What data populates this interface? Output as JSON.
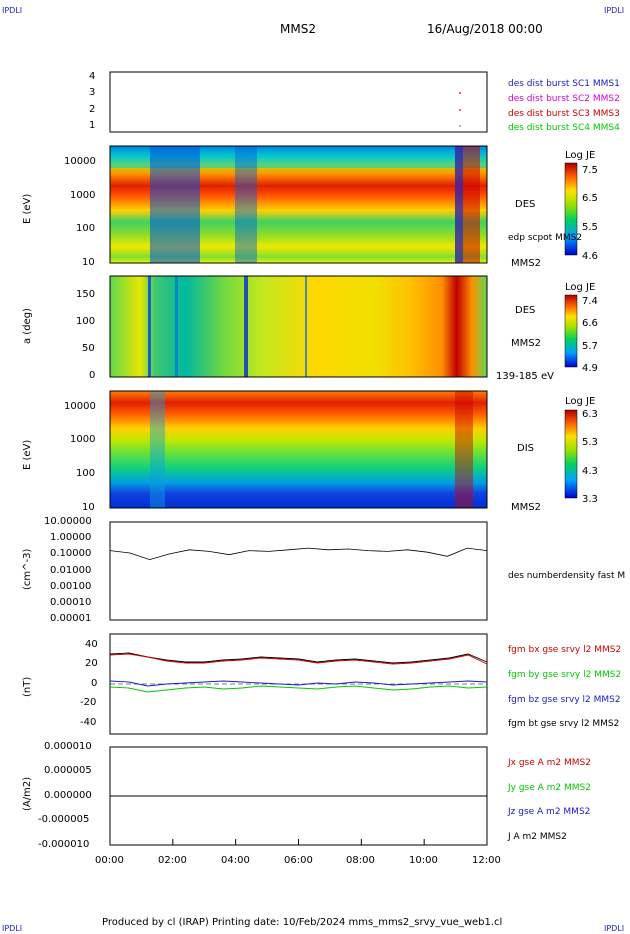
{
  "corners": {
    "tl": "IPDLI",
    "tr": "IPDLI",
    "bl": "IPDLI",
    "br": "IPDLI"
  },
  "header": {
    "spacecraft": "MMS2",
    "datetime": "16/Aug/2018 00:00"
  },
  "footer": "Produced by cl (IRAP)   Printing date: 10/Feb/2024   mms_mms2_srvy_vue_web1.cl",
  "colors": {
    "blue": "#1a1acc",
    "magenta": "#d400d4",
    "red": "#cc0000",
    "green": "#00c800",
    "black": "#000000"
  },
  "chart_data": [
    {
      "type": "scatter",
      "y_ticks": [
        "4",
        "3",
        "2",
        "1"
      ],
      "ylim": [
        0.5,
        4.5
      ],
      "legend": [
        {
          "name": "des dist burst SC1 MMS1",
          "color": "#1a1acc"
        },
        {
          "name": "des dist burst SC2 MMS2",
          "color": "#d400d4"
        },
        {
          "name": "des dist burst SC3 MMS3",
          "color": "#cc0000"
        },
        {
          "name": "des dist burst SC4 MMS4",
          "color": "#00c800"
        }
      ],
      "points": [
        {
          "x": 11.55,
          "y": 3
        },
        {
          "x": 11.55,
          "y": 2
        }
      ]
    },
    {
      "type": "heatmap",
      "ylabel": "E (eV)",
      "y_ticks": [
        "10000",
        "1000",
        "100",
        "10"
      ],
      "side_labels": [
        "DES",
        "edp scpot MMS2",
        "MMS2"
      ],
      "colorbar": {
        "title": "Log JE",
        "ticks": [
          "7.5",
          "6.5",
          "5.5",
          "4.6"
        ]
      }
    },
    {
      "type": "heatmap",
      "ylabel": "a (deg)",
      "y_ticks": [
        "150",
        "100",
        "50",
        "0"
      ],
      "side_labels": [
        "DES",
        "MMS2",
        "139-185 eV"
      ],
      "colorbar": {
        "title": "Log JE",
        "ticks": [
          "7.4",
          "6.6",
          "5.7",
          "4.9"
        ]
      }
    },
    {
      "type": "heatmap",
      "ylabel": "E (eV)",
      "y_ticks": [
        "10000",
        "1000",
        "100",
        "10"
      ],
      "side_labels": [
        "DIS",
        "MMS2"
      ],
      "colorbar": {
        "title": "Log JE",
        "ticks": [
          "6.3",
          "5.3",
          "4.3",
          "3.3"
        ]
      }
    },
    {
      "type": "line",
      "ylabel": "(cm^-3)",
      "y_ticks": [
        "10.00000",
        "1.00000",
        "0.10000",
        "0.01000",
        "0.00100",
        "0.00010",
        "0.00001"
      ],
      "legend": [
        {
          "name": "des numberdensity fast M",
          "color": "#000000"
        }
      ],
      "series": [
        {
          "values_log10": [
            -0.75,
            -0.9,
            -1.3,
            -0.95,
            -0.7,
            -0.8,
            -1.0,
            -0.75,
            -0.8,
            -0.7,
            -0.6,
            -0.7,
            -0.65,
            -0.75,
            -0.8,
            -0.7,
            -0.85,
            -1.1,
            -0.6,
            -0.75
          ]
        }
      ]
    },
    {
      "type": "line",
      "ylabel": "(nT)",
      "ylim": [
        -50,
        50
      ],
      "y_ticks": [
        "40",
        "20",
        "0",
        "-20",
        "-40"
      ],
      "legend": [
        {
          "name": "fgm bx gse srvy l2 MMS2",
          "color": "#cc0000"
        },
        {
          "name": "fgm by gse srvy l2 MMS2",
          "color": "#00c800"
        },
        {
          "name": "fgm bz gse srvy l2 MMS2",
          "color": "#1a1acc"
        },
        {
          "name": "fgm bt gse srvy l2 MMS2",
          "color": "#000000"
        }
      ],
      "series": [
        {
          "name": "fgm bt gse srvy l2 MMS2",
          "values": [
            30,
            31,
            27,
            24,
            22,
            22,
            24,
            25,
            27,
            26,
            25,
            22,
            24,
            25,
            23,
            21,
            22,
            24,
            26,
            30,
            22
          ]
        },
        {
          "name": "fgm bx gse srvy l2 MMS2",
          "values": [
            29,
            30,
            27,
            23,
            21,
            21,
            23,
            24,
            26,
            25,
            24,
            21,
            23,
            24,
            22,
            20,
            21,
            23,
            25,
            29,
            20
          ]
        },
        {
          "name": "fgm by gse srvy l2 MMS2",
          "values": [
            -3,
            -4,
            -8,
            -6,
            -4,
            -3,
            -5,
            -4,
            -2,
            -3,
            -4,
            -5,
            -3,
            -2,
            -4,
            -6,
            -5,
            -3,
            -2,
            -4,
            -3
          ]
        },
        {
          "name": "fgm bz gse srvy l2 MMS2",
          "values": [
            3,
            2,
            -2,
            0,
            1,
            2,
            3,
            2,
            1,
            0,
            -1,
            1,
            0,
            2,
            1,
            -1,
            0,
            1,
            2,
            3,
            2
          ]
        }
      ]
    },
    {
      "type": "line",
      "ylabel": "(A/m2)",
      "ylim": [
        -1e-05,
        1e-05
      ],
      "y_ticks": [
        "0.000010",
        "0.000005",
        "0.000000",
        "-0.000005",
        "-0.000010"
      ],
      "legend": [
        {
          "name": "Jx gse A m2 MMS2",
          "color": "#cc0000"
        },
        {
          "name": "Jy gse A m2 MMS2",
          "color": "#00c800"
        },
        {
          "name": "Jz gse A m2 MMS2",
          "color": "#1a1acc"
        },
        {
          "name": "J A m2 MMS2",
          "color": "#000000"
        }
      ],
      "series": [
        {
          "values": [
            0,
            0,
            0,
            0,
            0,
            0,
            0,
            0,
            0,
            0,
            0,
            0,
            0
          ]
        }
      ]
    }
  ],
  "x_axis": {
    "ticks": [
      "00:00",
      "02:00",
      "04:00",
      "06:00",
      "08:00",
      "10:00",
      "12:00"
    ],
    "range": [
      0,
      12
    ]
  }
}
